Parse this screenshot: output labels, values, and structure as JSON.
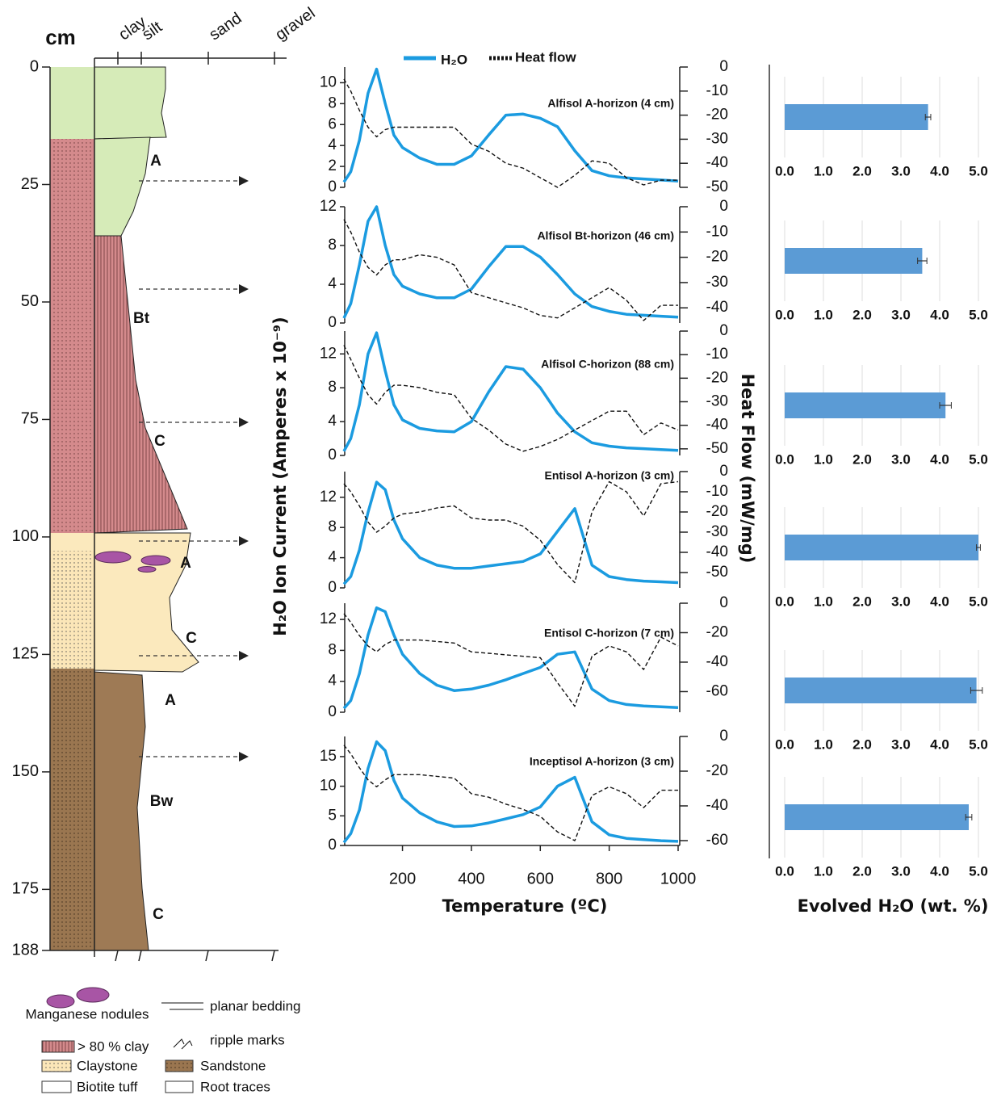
{
  "column": {
    "depth_unit": "cm",
    "depth_ticks": [
      0,
      25,
      50,
      75,
      100,
      125,
      150,
      175,
      188
    ],
    "grain_sizes": [
      "clay",
      "silt",
      "sand",
      "gravel"
    ],
    "horizons": [
      "A",
      "Bt",
      "C",
      "A",
      "C",
      "A",
      "Bw",
      "C"
    ],
    "legend": [
      "Manganese nodules",
      "planar bedding",
      "> 80 % clay",
      "ripple marks",
      "Claystone",
      "Sandstone",
      "Biotite tuff",
      "Root traces"
    ]
  },
  "chart_data": [
    {
      "type": "line",
      "xlabel": "Temperature (ºC)",
      "ylabel": "H₂O Ion Current (Amperes x 10⁻⁹)",
      "y2label": "Heat Flow (mW/mg)",
      "series": [
        {
          "name": "H₂O",
          "color": "#1b9be0"
        },
        {
          "name": "Heat flow",
          "color": "#111111",
          "axis": "y2"
        }
      ],
      "x": [
        30,
        50,
        75,
        100,
        125,
        150,
        175,
        200,
        250,
        300,
        350,
        400,
        450,
        500,
        550,
        600,
        650,
        700,
        750,
        800,
        850,
        900,
        950,
        1000
      ],
      "xlim": [
        30,
        1000
      ],
      "xticks": [
        200,
        400,
        600,
        800,
        1000
      ],
      "panels": [
        {
          "title": "Alfisol A-horizon (4 cm)",
          "ylim": [
            0,
            11.5
          ],
          "yticks": [
            0,
            2,
            4,
            6,
            8,
            10
          ],
          "y2lim": [
            -50,
            0
          ],
          "y2ticks": [
            0,
            -10,
            -20,
            -30,
            -40,
            -50
          ],
          "values": [
            [
              0.5,
              1.5,
              4.5,
              9,
              11.3,
              8,
              5,
              3.8,
              2.8,
              2.2,
              2.2,
              3,
              5,
              6.9,
              7,
              6.6,
              5.8,
              3.5,
              1.6,
              1.1,
              0.9,
              0.8,
              0.7,
              0.6
            ],
            [
              -5,
              -10,
              -18,
              -25,
              -29,
              -26,
              -25,
              -25,
              -25,
              -25,
              -25,
              -32,
              -35,
              -40,
              -42,
              -46,
              -50,
              -45,
              -39,
              -40,
              -46,
              -49,
              -47,
              -47
            ]
          ]
        },
        {
          "title": "Alfisol Bt-horizon (46 cm)",
          "ylim": [
            0,
            12
          ],
          "yticks": [
            0,
            4,
            8,
            12
          ],
          "y2lim": [
            -46,
            0
          ],
          "y2ticks": [
            0,
            -10,
            -20,
            -30,
            -40
          ],
          "values": [
            [
              0.5,
              2,
              6,
              10.5,
              12,
              8,
              5,
              3.8,
              3,
              2.6,
              2.6,
              3.5,
              5.8,
              7.9,
              7.9,
              6.8,
              5,
              3,
              1.7,
              1.2,
              0.9,
              0.8,
              0.7,
              0.6
            ],
            [
              -5,
              -10,
              -18,
              -24,
              -27,
              -23,
              -21,
              -21,
              -19,
              -20,
              -23,
              -34,
              -36,
              -38,
              -40,
              -43,
              -44,
              -40,
              -36,
              -32,
              -37,
              -45,
              -39,
              -39
            ]
          ]
        },
        {
          "title": "Alfisol C-horizon (88 cm)",
          "ylim": [
            0,
            14.7
          ],
          "yticks": [
            0,
            4,
            8,
            12
          ],
          "y2lim": [
            -52.8,
            0
          ],
          "y2ticks": [
            0,
            -10,
            -20,
            -30,
            -40,
            -50
          ],
          "values": [
            [
              0.5,
              2,
              6,
              12,
              14.5,
              10,
              6,
              4.2,
              3.2,
              2.9,
              2.8,
              4,
              7.5,
              10.5,
              10.2,
              8,
              5,
              2.8,
              1.5,
              1.1,
              0.9,
              0.8,
              0.7,
              0.6
            ],
            [
              -6,
              -12,
              -20,
              -27,
              -31,
              -26,
              -23,
              -23,
              -24,
              -26,
              -27,
              -37,
              -42,
              -48,
              -51,
              -49,
              -46,
              -42,
              -38,
              -34,
              -34,
              -44,
              -39,
              -42
            ]
          ]
        },
        {
          "title": "Entisol A-horizon (3 cm)",
          "ylim": [
            0,
            15.4
          ],
          "yticks": [
            0,
            4,
            8,
            12
          ],
          "y2lim": [
            -57.6,
            0
          ],
          "y2ticks": [
            0,
            -10,
            -20,
            -30,
            -40,
            -50
          ],
          "values": [
            [
              0.5,
              1.5,
              5,
              10,
              14,
              13,
              9,
              6.5,
              4,
              3,
              2.6,
              2.6,
              2.9,
              3.2,
              3.5,
              4.5,
              7.5,
              10.5,
              3,
              1.5,
              1.1,
              0.9,
              0.8,
              0.7
            ],
            [
              -6,
              -10,
              -17,
              -25,
              -30,
              -27,
              -23,
              -21,
              -20,
              -18,
              -17,
              -23,
              -24,
              -24,
              -27,
              -34,
              -46,
              -55,
              -20,
              -5,
              -10,
              -22,
              -6,
              -5
            ]
          ]
        },
        {
          "title": "Entisol C-horizon (7 cm)",
          "ylim": [
            0,
            14.1
          ],
          "yticks": [
            0,
            4,
            8,
            12
          ],
          "y2lim": [
            -74,
            0
          ],
          "y2ticks": [
            0,
            -20,
            -40,
            -60
          ],
          "values": [
            [
              0.5,
              1.5,
              5,
              10,
              13.5,
              13,
              10,
              7.5,
              5,
              3.5,
              2.8,
              3,
              3.5,
              4.2,
              5,
              5.8,
              7.5,
              7.8,
              3,
              1.5,
              1,
              0.8,
              0.7,
              0.6
            ],
            [
              -7,
              -13,
              -22,
              -29,
              -33,
              -28,
              -25,
              -25,
              -25,
              -26,
              -27,
              -33,
              -34,
              -35,
              -36,
              -37,
              -54,
              -70,
              -36,
              -29,
              -33,
              -45,
              -23,
              -29
            ]
          ]
        },
        {
          "title": "Inceptisol A-horizon (3 cm)",
          "ylim": [
            0,
            18.4
          ],
          "yticks": [
            0,
            5,
            10,
            15
          ],
          "y2lim": [
            -62.8,
            0
          ],
          "y2ticks": [
            0,
            -20,
            -40,
            -60
          ],
          "values": [
            [
              0.5,
              2,
              6,
              13,
              17.5,
              16,
              11,
              8,
              5.5,
              4,
              3.2,
              3.3,
              3.8,
              4.5,
              5.2,
              6.5,
              10,
              11.5,
              4,
              1.8,
              1.2,
              1,
              0.8,
              0.7
            ],
            [
              -5,
              -10,
              -18,
              -25,
              -29,
              -25,
              -22,
              -22,
              -22,
              -23,
              -24,
              -33,
              -35,
              -39,
              -42,
              -46,
              -55,
              -60,
              -34,
              -29,
              -33,
              -41,
              -31,
              -31
            ]
          ]
        }
      ]
    },
    {
      "type": "bar",
      "orientation": "horizontal",
      "xlabel": "Evolved H₂O (wt. %)",
      "color": "#5b9bd5",
      "grid": true,
      "categories": [
        null,
        null,
        null,
        null,
        null,
        null
      ],
      "values": [
        3.7,
        3.55,
        4.15,
        5.0,
        4.95,
        4.75
      ],
      "errors": [
        0.07,
        0.12,
        0.15,
        0.05,
        0.15,
        0.08
      ],
      "xlim": [
        0,
        5
      ],
      "xticks": [
        {
          "value": 0,
          "label": "0.0"
        },
        {
          "value": 1,
          "label": "1.0"
        },
        {
          "value": 2,
          "label": "2.0"
        },
        {
          "value": 3,
          "label": "3.0"
        },
        {
          "value": 4,
          "label": "4.0"
        },
        {
          "value": 5,
          "label": "5.0"
        }
      ]
    }
  ]
}
